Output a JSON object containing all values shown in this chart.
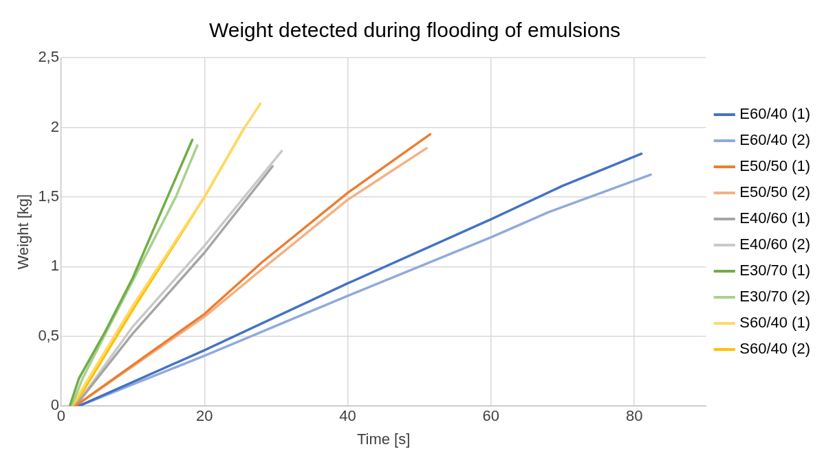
{
  "chart_data": {
    "type": "line",
    "title": "Weight detected during flooding of emulsions",
    "xlabel": "Time [s]",
    "ylabel": "Weight [kg]",
    "xlim": [
      0,
      90
    ],
    "xticks": [
      0,
      20,
      40,
      60,
      80
    ],
    "ylim": [
      0,
      2.5
    ],
    "yticks": [
      0,
      {
        "value": 0.5,
        "label": "0,5"
      },
      1,
      {
        "value": 1.5,
        "label": "1,5"
      },
      2,
      {
        "value": 2.5,
        "label": "2,5"
      }
    ],
    "grid": true,
    "legend": "right",
    "marker": "none",
    "line_style": "solid",
    "series": [
      {
        "name": "E60/40 (1)",
        "color": "#4472c4",
        "x": [
          2.5,
          20,
          40,
          60,
          70,
          81
        ],
        "values": [
          0,
          0.4,
          0.88,
          1.34,
          1.58,
          1.81
        ]
      },
      {
        "name": "E60/40 (2)",
        "color": "#8faadc",
        "x": [
          2.5,
          20,
          40,
          60,
          68,
          82.3
        ],
        "values": [
          0,
          0.36,
          0.79,
          1.21,
          1.39,
          1.66
        ]
      },
      {
        "name": "E50/50 (1)",
        "color": "#ed7d31",
        "x": [
          2,
          20,
          28,
          40,
          51.5
        ],
        "values": [
          0,
          0.66,
          1.03,
          1.53,
          1.95
        ]
      },
      {
        "name": "E50/50 (2)",
        "color": "#f4b183",
        "x": [
          2,
          20,
          28,
          40,
          51
        ],
        "values": [
          0,
          0.64,
          0.98,
          1.48,
          1.85
        ]
      },
      {
        "name": "E40/60 (1)",
        "color": "#a5a5a5",
        "x": [
          2,
          10,
          20,
          29.5
        ],
        "values": [
          0,
          0.52,
          1.1,
          1.72
        ]
      },
      {
        "name": "E40/60 (2)",
        "color": "#c9c9c9",
        "x": [
          2,
          10,
          20,
          30.8
        ],
        "values": [
          0,
          0.57,
          1.15,
          1.83
        ]
      },
      {
        "name": "E30/70 (1)",
        "color": "#70ad47",
        "x": [
          1.2,
          2.5,
          6,
          10,
          14,
          18.3
        ],
        "values": [
          0,
          0.2,
          0.52,
          0.92,
          1.4,
          1.91
        ]
      },
      {
        "name": "E30/70 (2)",
        "color": "#a9d18e",
        "x": [
          1.5,
          3,
          6,
          10,
          16,
          19
        ],
        "values": [
          0,
          0.2,
          0.5,
          0.9,
          1.5,
          1.87
        ]
      },
      {
        "name": "S60/40 (1)",
        "color": "#ffd966",
        "x": [
          1.5,
          10,
          20,
          25.5,
          27.8
        ],
        "values": [
          0,
          0.72,
          1.5,
          1.99,
          2.17
        ]
      },
      {
        "name": "S60/40 (2)",
        "color": "#ffc000",
        "x": [
          1.8,
          10,
          20,
          25.5
        ],
        "values": [
          0,
          0.69,
          1.5,
          1.99
        ]
      }
    ]
  }
}
